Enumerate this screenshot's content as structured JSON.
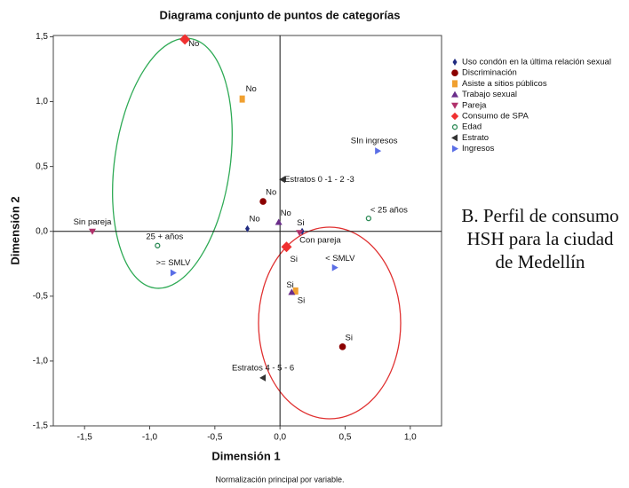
{
  "chart_data": {
    "type": "scatter",
    "title": "Diagrama conjunto de puntos de categorías",
    "x_label": "Dimensión 1",
    "y_label": "Dimensión 2",
    "footnote": "Normalización principal por variable.",
    "annotation": [
      "B. Perfil de consumo",
      "HSH para la ciudad",
      "de Medellín"
    ],
    "xlim": [
      -1.74,
      1.24
    ],
    "ylim": [
      -1.5,
      1.51
    ],
    "xticks": [
      {
        "value": -1.5,
        "label": "-1,5"
      },
      {
        "value": -1.0,
        "label": "-1,0"
      },
      {
        "value": -0.5,
        "label": "-0,5"
      },
      {
        "value": 0.0,
        "label": "0,0"
      },
      {
        "value": 0.5,
        "label": "0,5"
      },
      {
        "value": 1.0,
        "label": "1,0"
      }
    ],
    "yticks": [
      {
        "value": -1.5,
        "label": "-1,5"
      },
      {
        "value": -1.0,
        "label": "-1,0"
      },
      {
        "value": -0.5,
        "label": "-0,5"
      },
      {
        "value": 0.0,
        "label": "0,0"
      },
      {
        "value": 0.5,
        "label": "0,5"
      },
      {
        "value": 1.0,
        "label": "1,0"
      },
      {
        "value": 1.5,
        "label": "1,5"
      }
    ],
    "series": [
      {
        "name": "Uso condón en la última relación sexual",
        "color": "#1f2a80",
        "marker": "diamond",
        "x": [
          -0.25,
          0.17
        ],
        "values": [
          0.02,
          0.0
        ],
        "labels": [
          "No",
          "Si"
        ]
      },
      {
        "name": "Discriminación",
        "color": "#8b0000",
        "marker": "circle",
        "x": [
          -0.13,
          0.48
        ],
        "values": [
          0.23,
          -0.89
        ],
        "labels": [
          "No",
          "Si"
        ]
      },
      {
        "name": "Asiste a sitios públicos",
        "color": "#f0a030",
        "marker": "square",
        "x": [
          -0.29,
          0.12
        ],
        "values": [
          1.02,
          -0.46
        ],
        "labels": [
          "No",
          "Si"
        ]
      },
      {
        "name": "Trabajo sexual",
        "color": "#6a2d8a",
        "marker": "triangle",
        "x": [
          -0.01,
          0.09
        ],
        "values": [
          0.07,
          -0.47
        ],
        "labels": [
          "No",
          "Si"
        ]
      },
      {
        "name": "Pareja",
        "color": "#b0306a",
        "marker": "triangle-down",
        "x": [
          -1.44,
          0.15
        ],
        "values": [
          0.0,
          -0.01
        ],
        "labels": [
          "Sin pareja",
          "Con pareja"
        ]
      },
      {
        "name": "Consumo de SPA",
        "color": "#f03030",
        "marker": "diamond-large",
        "x": [
          -0.73,
          0.05
        ],
        "values": [
          1.48,
          -0.12
        ],
        "labels": [
          "No",
          "Si"
        ]
      },
      {
        "name": "Edad",
        "color": "#2e8b57",
        "marker": "ring",
        "x": [
          -0.94,
          0.68
        ],
        "values": [
          -0.11,
          0.1
        ],
        "labels": [
          "25 + años",
          "< 25 años"
        ]
      },
      {
        "name": "Estrato",
        "color": "#333333",
        "marker": "triangle-left",
        "x": [
          0.02,
          -0.13
        ],
        "values": [
          0.4,
          -1.13
        ],
        "labels": [
          "Estratos 0 -1 - 2 -3",
          "Estratos 4 - 5 - 6"
        ]
      },
      {
        "name": "Ingresos",
        "color": "#5a6ee6",
        "marker": "triangle-right",
        "x": [
          0.75,
          0.42,
          -0.82
        ],
        "values": [
          0.62,
          -0.28,
          -0.32
        ],
        "labels": [
          "SIn ingresos",
          "< SMLV",
          ">= SMLV"
        ]
      }
    ]
  }
}
